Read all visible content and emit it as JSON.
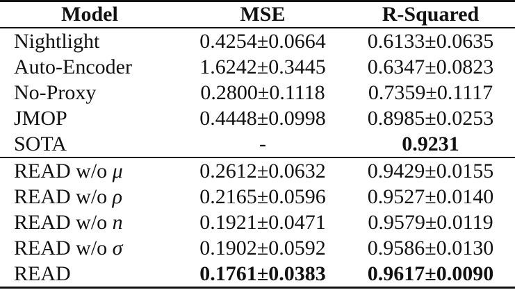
{
  "table": {
    "columns": {
      "model": "Model",
      "mse": "MSE",
      "r2": "R-Squared"
    },
    "rows": [
      {
        "model": "Nightlight",
        "mse": "0.4254±0.0664",
        "r2": "0.6133±0.0635"
      },
      {
        "model": "Auto-Encoder",
        "mse": "1.6242±0.3445",
        "r2": "0.6347±0.0823"
      },
      {
        "model": "No-Proxy",
        "mse": "0.2800±0.1118",
        "r2": "0.7359±0.1117"
      },
      {
        "model": "JMOP",
        "mse": "0.4448±0.0998",
        "r2": "0.8985±0.0253"
      },
      {
        "model": "SOTA",
        "mse": "-",
        "r2": "0.9231"
      },
      {
        "model_prefix": "READ w/o ",
        "model_symbol": "μ",
        "mse": "0.2612±0.0632",
        "r2": "0.9429±0.0155"
      },
      {
        "model_prefix": "READ w/o ",
        "model_symbol": "ρ",
        "mse": "0.2165±0.0596",
        "r2": "0.9527±0.0140"
      },
      {
        "model_prefix": "READ w/o ",
        "model_symbol": "n",
        "mse": "0.1921±0.0471",
        "r2": "0.9579±0.0119"
      },
      {
        "model_prefix": "READ w/o ",
        "model_symbol": "σ",
        "mse": "0.1902±0.0592",
        "r2": "0.9586±0.0130"
      },
      {
        "model": "READ",
        "mse": "0.1761±0.0383",
        "r2": "0.9617±0.0090"
      }
    ]
  }
}
